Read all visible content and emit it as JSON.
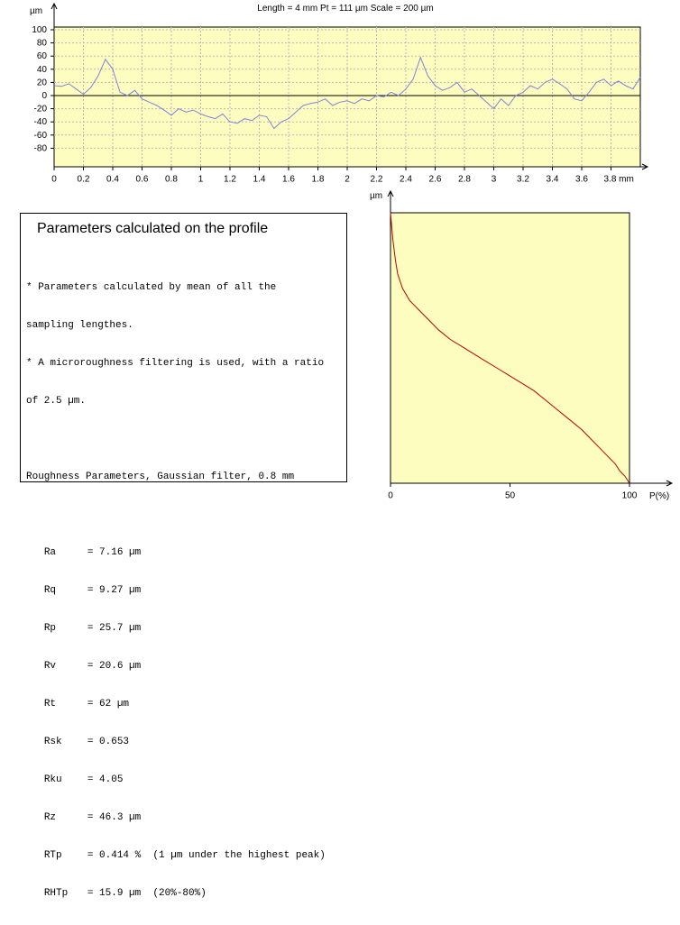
{
  "header": {
    "title": "Length = 4 mm  Pt = 111 µm  Scale = 200 µm"
  },
  "colors": {
    "plot_bg": "#fdfdbf",
    "profile_line": "#8080e0",
    "curve_line": "#c00000"
  },
  "chart_data": [
    {
      "type": "line",
      "title": "Length = 4 mm  Pt = 111 µm  Scale = 200 µm",
      "ylabel": "µm",
      "xlabel": "mm",
      "xlim": [
        0,
        4.0
      ],
      "ylim": [
        -100,
        100
      ],
      "yticks": [
        100,
        80,
        60,
        40,
        20,
        0,
        -20,
        -40,
        -60,
        -80
      ],
      "xticks": [
        0,
        0.2,
        0.4,
        0.6,
        0.8,
        1,
        1.2,
        1.4,
        1.6,
        1.8,
        2,
        2.2,
        2.4,
        2.6,
        2.8,
        3,
        3.2,
        3.4,
        3.6,
        3.8
      ],
      "xtick_labels": [
        "0",
        "0.2",
        "0.4",
        "0.6",
        "0.8",
        "1",
        "1.2",
        "1.4",
        "1.6",
        "1.8",
        "2",
        "2.2",
        "2.4",
        "2.6",
        "2.8",
        "3",
        "3.2",
        "3.4",
        "3.6",
        "3.8 mm"
      ],
      "grid": true,
      "x": [
        0,
        0.05,
        0.1,
        0.15,
        0.2,
        0.25,
        0.3,
        0.35,
        0.4,
        0.45,
        0.5,
        0.55,
        0.6,
        0.65,
        0.7,
        0.75,
        0.8,
        0.85,
        0.9,
        0.95,
        1.0,
        1.05,
        1.1,
        1.15,
        1.2,
        1.25,
        1.3,
        1.35,
        1.4,
        1.45,
        1.5,
        1.55,
        1.6,
        1.65,
        1.7,
        1.75,
        1.8,
        1.85,
        1.9,
        1.95,
        2.0,
        2.05,
        2.1,
        2.15,
        2.2,
        2.25,
        2.3,
        2.35,
        2.4,
        2.45,
        2.5,
        2.55,
        2.6,
        2.65,
        2.7,
        2.75,
        2.8,
        2.85,
        2.9,
        2.95,
        3.0,
        3.05,
        3.1,
        3.15,
        3.2,
        3.25,
        3.3,
        3.35,
        3.4,
        3.45,
        3.5,
        3.55,
        3.6,
        3.65,
        3.7,
        3.75,
        3.8,
        3.85,
        3.9,
        3.95,
        4.0
      ],
      "y": [
        15,
        14,
        18,
        10,
        2,
        12,
        30,
        55,
        40,
        5,
        0,
        8,
        -5,
        -10,
        -15,
        -22,
        -30,
        -20,
        -25,
        -22,
        -28,
        -32,
        -35,
        -28,
        -40,
        -42,
        -35,
        -38,
        -30,
        -32,
        -50,
        -40,
        -35,
        -25,
        -15,
        -12,
        -10,
        -5,
        -15,
        -10,
        -8,
        -12,
        -5,
        -8,
        0,
        -2,
        5,
        0,
        10,
        25,
        58,
        30,
        15,
        8,
        12,
        20,
        5,
        10,
        0,
        -10,
        -20,
        -5,
        -15,
        0,
        5,
        15,
        10,
        20,
        25,
        18,
        10,
        -5,
        -8,
        5,
        20,
        25,
        15,
        22,
        15,
        10,
        28
      ]
    },
    {
      "type": "line",
      "ylabel": "µm",
      "xlabel": "P(%)",
      "xlim": [
        0,
        100
      ],
      "xticks": [
        0,
        50,
        100
      ],
      "grid": false,
      "x": [
        0,
        1,
        2,
        3,
        5,
        8,
        12,
        16,
        20,
        25,
        30,
        35,
        40,
        45,
        50,
        55,
        60,
        65,
        70,
        75,
        80,
        84,
        88,
        91,
        94,
        96,
        98,
        99,
        100
      ],
      "y": [
        111,
        100,
        92,
        86,
        80,
        75,
        71,
        67,
        63,
        59,
        56,
        53,
        50,
        47,
        44,
        41,
        38,
        34,
        30,
        26,
        22,
        18,
        14,
        11,
        8,
        5,
        3,
        1.5,
        0
      ]
    }
  ],
  "params": {
    "title": "Parameters calculated on the profile",
    "notes": [
      "* Parameters calculated by mean of all the",
      "sampling lengthes.",
      "* A microroughness filtering is used, with a ratio",
      "of 2.5 µm."
    ],
    "section": "Roughness Parameters, Gaussian filter, 0.8 mm",
    "rows": [
      {
        "name": "Ra",
        "value": "= 7.16 µm"
      },
      {
        "name": "Rq",
        "value": "= 9.27 µm"
      },
      {
        "name": "Rp",
        "value": "= 25.7 µm"
      },
      {
        "name": "Rv",
        "value": "= 20.6 µm"
      },
      {
        "name": "Rt",
        "value": "= 62 µm"
      },
      {
        "name": "Rsk",
        "value": "= 0.653"
      },
      {
        "name": "Rku",
        "value": "= 4.05"
      },
      {
        "name": "Rz",
        "value": "= 46.3 µm"
      },
      {
        "name": "RTp",
        "value": "= 0.414 %  (1 µm under the highest peak)"
      },
      {
        "name": "RHTp",
        "value": "= 15.9 µm  (20%-80%)"
      }
    ]
  }
}
